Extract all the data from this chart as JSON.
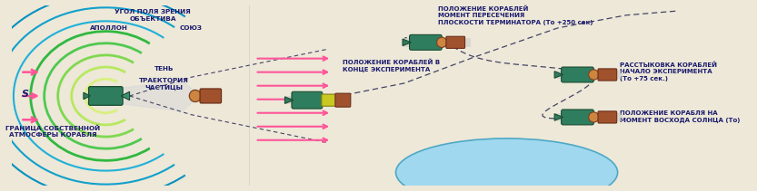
{
  "bg_color": "#ede8d8",
  "arrow_color": "#ff5599",
  "apollo_color": "#2e7d5e",
  "soyuz_color": "#a0522d",
  "soyuz_color2": "#cd853f",
  "atm_colors": [
    "#c8f0a0",
    "#a8e890",
    "#78d878",
    "#40c8c8",
    "#20a8d0",
    "#1090c8"
  ],
  "shadow_color": "#d0d0d0",
  "dash_color": "#444466",
  "earth_color": "#7ec8e3",
  "earth_edge": "#4fa8c5",
  "text_color": "#1a1a6e",
  "text1": "УГОЛ ПОЛЯ ЗРЕНИЯ\nОБЪЕКТИВА",
  "text2": "АПОЛЛОН",
  "text3": "СОЮЗ",
  "text4": "ТЕНЬ",
  "text5": "ТРАЕКТОРИЯ\nЧАСТИЦЫ",
  "text6": "ГРАНИЦА СОБСТВЕННОЙ\nАТМОСФЕРЫ КОРАБЛЯ",
  "text_s": "S",
  "text8": "ПОЛОЖЕНИЕ КОРАБЛЕЙ\nМОМЕНТ ПЕРЕСЕЧЕНИЯ\nПЛОСКОСТИ ТЕРМИНАТОРА (То +250 сек)",
  "text9": "РАССТЫКОВКА КОРАБЛЕЙ\nНАЧАЛО ЭКСПЕРИМЕНТА\n(То +75 сек.)",
  "text10": "ПОЛОЖЕНИЕ КОРАБЛЕЙ В\nКОНЦЕ ЭКСПЕРИМЕНТА",
  "text11": "ПОЛОЖЕНИЕ КОРАБЛЯ НА\nМОМЕНТ ВОСХОДА СОЛНЦА (То)"
}
